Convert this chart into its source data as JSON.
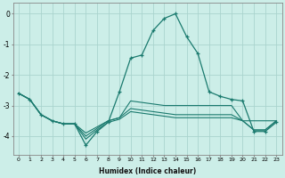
{
  "xlabel": "Humidex (Indice chaleur)",
  "background_color": "#cceee8",
  "grid_color": "#aad4ce",
  "line_color": "#1a7a6e",
  "x": [
    0,
    1,
    2,
    3,
    4,
    5,
    6,
    7,
    8,
    9,
    10,
    11,
    12,
    13,
    14,
    15,
    16,
    17,
    18,
    19,
    20,
    21,
    22,
    23
  ],
  "flat_line1": [
    -2.6,
    -2.8,
    -3.3,
    -3.5,
    -3.6,
    -3.6,
    -3.9,
    -3.7,
    -3.5,
    -3.4,
    -2.85,
    -2.9,
    -2.95,
    -3.0,
    -3.0,
    -3.0,
    -3.0,
    -3.0,
    -3.0,
    -3.0,
    -3.5,
    -3.5,
    -3.5,
    -3.5
  ],
  "flat_line2": [
    -2.6,
    -2.8,
    -3.3,
    -3.5,
    -3.6,
    -3.6,
    -4.0,
    -3.75,
    -3.5,
    -3.4,
    -3.1,
    -3.15,
    -3.2,
    -3.25,
    -3.3,
    -3.3,
    -3.3,
    -3.3,
    -3.3,
    -3.3,
    -3.5,
    -3.8,
    -3.8,
    -3.5
  ],
  "flat_line3": [
    -2.6,
    -2.8,
    -3.3,
    -3.5,
    -3.6,
    -3.6,
    -4.1,
    -3.8,
    -3.55,
    -3.45,
    -3.2,
    -3.25,
    -3.3,
    -3.35,
    -3.4,
    -3.4,
    -3.4,
    -3.4,
    -3.4,
    -3.4,
    -3.5,
    -3.8,
    -3.8,
    -3.5
  ],
  "main_line": [
    -2.6,
    -2.8,
    -3.3,
    -3.5,
    -3.6,
    -3.6,
    -4.3,
    -3.85,
    -3.55,
    -2.55,
    -1.45,
    -1.35,
    -0.55,
    -0.15,
    0.0,
    -0.75,
    -1.3,
    -2.55,
    -2.7,
    -2.8,
    -2.85,
    -3.85,
    -3.85,
    -3.55
  ],
  "ylim": [
    -4.6,
    0.35
  ],
  "xlim": [
    -0.5,
    23.5
  ],
  "yticks": [
    0,
    -1,
    -2,
    -3,
    -4
  ],
  "xticks": [
    0,
    1,
    2,
    3,
    4,
    5,
    6,
    7,
    8,
    9,
    10,
    11,
    12,
    13,
    14,
    15,
    16,
    17,
    18,
    19,
    20,
    21,
    22,
    23
  ]
}
